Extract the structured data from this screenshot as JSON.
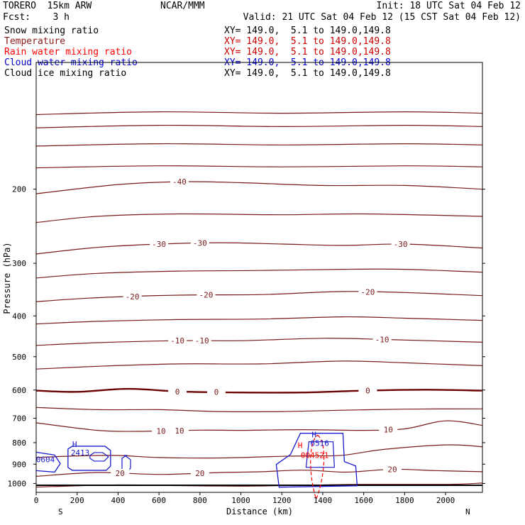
{
  "header": {
    "model": "TORERO  15km ARW",
    "center": "NCAR/MMM",
    "init": "Init: 18 UTC Sat 04 Feb 12",
    "fcst": "Fcst:    3 h",
    "valid": "Valid: 21 UTC Sat 04 Feb 12 (15 CST Sat 04 Feb 12)"
  },
  "fields": [
    {
      "name": "Snow mixing ratio",
      "xy": "XY= 149.0,  5.1 to 149.0,149.8",
      "name_color": "#000000",
      "xy_color": "#000000"
    },
    {
      "name": "Temperature",
      "xy": "XY= 149.0,  5.1 to 149.0,149.8",
      "name_color": "#8b1a1a",
      "xy_color": "#cc0000"
    },
    {
      "name": "Rain water mixing ratio",
      "xy": "XY= 149.0,  5.1 to 149.0,149.8",
      "name_color": "#ff0000",
      "xy_color": "#cc0000"
    },
    {
      "name": "Cloud water mixing ratio",
      "xy": "XY= 149.0,  5.1 to 149.0,149.8",
      "name_color": "#0000cc",
      "xy_color": "#0000cc"
    },
    {
      "name": "Cloud ice mixing ratio",
      "xy": "XY= 149.0,  5.1 to 149.0,149.8",
      "name_color": "#000000",
      "xy_color": "#000000"
    }
  ],
  "colors": {
    "temperature": "#7a1a1a",
    "zero_isotherm": "#6b0000",
    "rain": "#ff0000",
    "cloud_water": "#1a1acc",
    "ground": "#000000"
  },
  "chart_data": {
    "type": "line",
    "xlabel": "Distance (km)",
    "ylabel": "Pressure (hPa)",
    "xlim": [
      0,
      2180
    ],
    "ylim": [
      1050,
      100
    ],
    "y_scale": "log",
    "x_ticks": [
      0,
      200,
      400,
      600,
      800,
      1000,
      1200,
      1400,
      1600,
      1800,
      2000
    ],
    "x_tick_labels": [
      "0",
      "200",
      "400",
      "600",
      "800",
      "1000",
      "1200",
      "1400",
      "1600",
      "1800",
      "2000"
    ],
    "y_ticks": [
      200,
      300,
      400,
      500,
      600,
      700,
      800,
      900,
      1000
    ],
    "y_tick_labels": [
      "200",
      "300",
      "400",
      "500",
      "600",
      "700",
      "800",
      "900",
      "1000"
    ],
    "x_end_labels": {
      "left": "S",
      "right": "N"
    },
    "temperature_isotherms": [
      {
        "value": -60,
        "label": "",
        "points": [
          [
            0,
            133
          ],
          [
            600,
            131
          ],
          [
            1200,
            132
          ],
          [
            1800,
            131
          ],
          [
            2180,
            132
          ]
        ]
      },
      {
        "value": -55,
        "label": "",
        "points": [
          [
            0,
            143
          ],
          [
            600,
            141
          ],
          [
            1200,
            142
          ],
          [
            1800,
            141
          ],
          [
            2180,
            142
          ]
        ]
      },
      {
        "value": -50,
        "label": "",
        "points": [
          [
            0,
            158
          ],
          [
            600,
            156
          ],
          [
            1200,
            157
          ],
          [
            1800,
            156
          ],
          [
            2180,
            157
          ]
        ]
      },
      {
        "value": -45,
        "label": "",
        "points": [
          [
            0,
            178
          ],
          [
            600,
            176
          ],
          [
            1200,
            177
          ],
          [
            1800,
            176
          ],
          [
            2180,
            177
          ]
        ]
      },
      {
        "value": -40,
        "label": "-40",
        "points": [
          [
            0,
            205
          ],
          [
            400,
            195
          ],
          [
            700,
            192
          ],
          [
            1000,
            193
          ],
          [
            1400,
            196
          ],
          [
            1800,
            196
          ],
          [
            2180,
            200
          ]
        ]
      },
      {
        "value": -35,
        "label": "",
        "points": [
          [
            0,
            240
          ],
          [
            300,
            232
          ],
          [
            700,
            229
          ],
          [
            1200,
            230
          ],
          [
            1600,
            229
          ],
          [
            2180,
            232
          ]
        ]
      },
      {
        "value": -30,
        "label": "-30",
        "points": [
          [
            0,
            285
          ],
          [
            300,
            275
          ],
          [
            600,
            270
          ],
          [
            900,
            268
          ],
          [
            1200,
            270
          ],
          [
            1500,
            272
          ],
          [
            1800,
            270
          ],
          [
            2180,
            276
          ]
        ]
      },
      {
        "value": -25,
        "label": "",
        "points": [
          [
            0,
            325
          ],
          [
            300,
            317
          ],
          [
            700,
            313
          ],
          [
            1100,
            312
          ],
          [
            1500,
            310
          ],
          [
            1800,
            310
          ],
          [
            2180,
            315
          ]
        ]
      },
      {
        "value": -20,
        "label": "-20",
        "points": [
          [
            0,
            370
          ],
          [
            300,
            362
          ],
          [
            700,
            357
          ],
          [
            1100,
            356
          ],
          [
            1500,
            350
          ],
          [
            1800,
            352
          ],
          [
            2180,
            358
          ]
        ]
      },
      {
        "value": -15,
        "label": "",
        "points": [
          [
            0,
            418
          ],
          [
            300,
            412
          ],
          [
            700,
            408
          ],
          [
            1100,
            407
          ],
          [
            1500,
            402
          ],
          [
            1800,
            405
          ],
          [
            2180,
            410
          ]
        ]
      },
      {
        "value": -10,
        "label": "-10",
        "points": [
          [
            0,
            470
          ],
          [
            300,
            463
          ],
          [
            700,
            458
          ],
          [
            1000,
            458
          ],
          [
            1400,
            452
          ],
          [
            1700,
            455
          ],
          [
            2180,
            462
          ]
        ]
      },
      {
        "value": -5,
        "label": "",
        "points": [
          [
            0,
            535
          ],
          [
            300,
            527
          ],
          [
            700,
            520
          ],
          [
            1100,
            520
          ],
          [
            1500,
            512
          ],
          [
            1800,
            517
          ],
          [
            2180,
            525
          ]
        ]
      },
      {
        "value": 0,
        "label": "0",
        "points": [
          [
            0,
            602
          ],
          [
            200,
            606
          ],
          [
            450,
            596
          ],
          [
            700,
            605
          ],
          [
            1000,
            608
          ],
          [
            1300,
            608
          ],
          [
            1600,
            602
          ],
          [
            1900,
            599
          ],
          [
            2180,
            602
          ]
        ]
      },
      {
        "value": 5,
        "label": "",
        "points": [
          [
            0,
            660
          ],
          [
            300,
            668
          ],
          [
            600,
            668
          ],
          [
            900,
            675
          ],
          [
            1200,
            675
          ],
          [
            1500,
            670
          ],
          [
            1800,
            666
          ],
          [
            2180,
            665
          ]
        ]
      },
      {
        "value": 10,
        "label": "10",
        "points": [
          [
            0,
            718
          ],
          [
            300,
            748
          ],
          [
            500,
            752
          ],
          [
            800,
            747
          ],
          [
            1000,
            748
          ],
          [
            1300,
            745
          ],
          [
            1600,
            748
          ],
          [
            1800,
            742
          ],
          [
            2000,
            710
          ],
          [
            2180,
            728
          ]
        ]
      },
      {
        "value": 15,
        "label": "",
        "points": [
          [
            0,
            868
          ],
          [
            200,
            860
          ],
          [
            400,
            858
          ],
          [
            600,
            868
          ],
          [
            900,
            870
          ],
          [
            1200,
            862
          ],
          [
            1350,
            860
          ],
          [
            1500,
            857
          ],
          [
            1700,
            830
          ],
          [
            2000,
            810
          ],
          [
            2180,
            818
          ]
        ]
      },
      {
        "value": 20,
        "label": "20",
        "points": [
          [
            0,
            962
          ],
          [
            300,
            942
          ],
          [
            600,
            952
          ],
          [
            900,
            942
          ],
          [
            1100,
            938
          ],
          [
            1300,
            930
          ],
          [
            1500,
            940
          ],
          [
            1600,
            935
          ],
          [
            1750,
            925
          ],
          [
            1950,
            932
          ],
          [
            2180,
            938
          ]
        ]
      },
      {
        "value": 25,
        "label": "",
        "points": [
          [
            0,
            1020
          ],
          [
            400,
            1008
          ],
          [
            700,
            1012
          ],
          [
            1000,
            1015
          ],
          [
            1300,
            1010
          ],
          [
            1600,
            1005
          ],
          [
            2000,
            1005
          ],
          [
            2180,
            998
          ]
        ]
      }
    ],
    "cloud_water_maxima": [
      {
        "label": "H",
        "value": "2413",
        "x": 190,
        "p": 858
      },
      {
        "label": "H",
        "value": "6516",
        "x": 1360,
        "p": 815
      },
      {
        "label": "",
        "value": "0604",
        "x": 20,
        "p": 890
      }
    ],
    "rain_maxima": [
      {
        "label": "H",
        "value": "004521",
        "x": 1375,
        "p": 830
      }
    ],
    "ground_pressure": 1010
  }
}
